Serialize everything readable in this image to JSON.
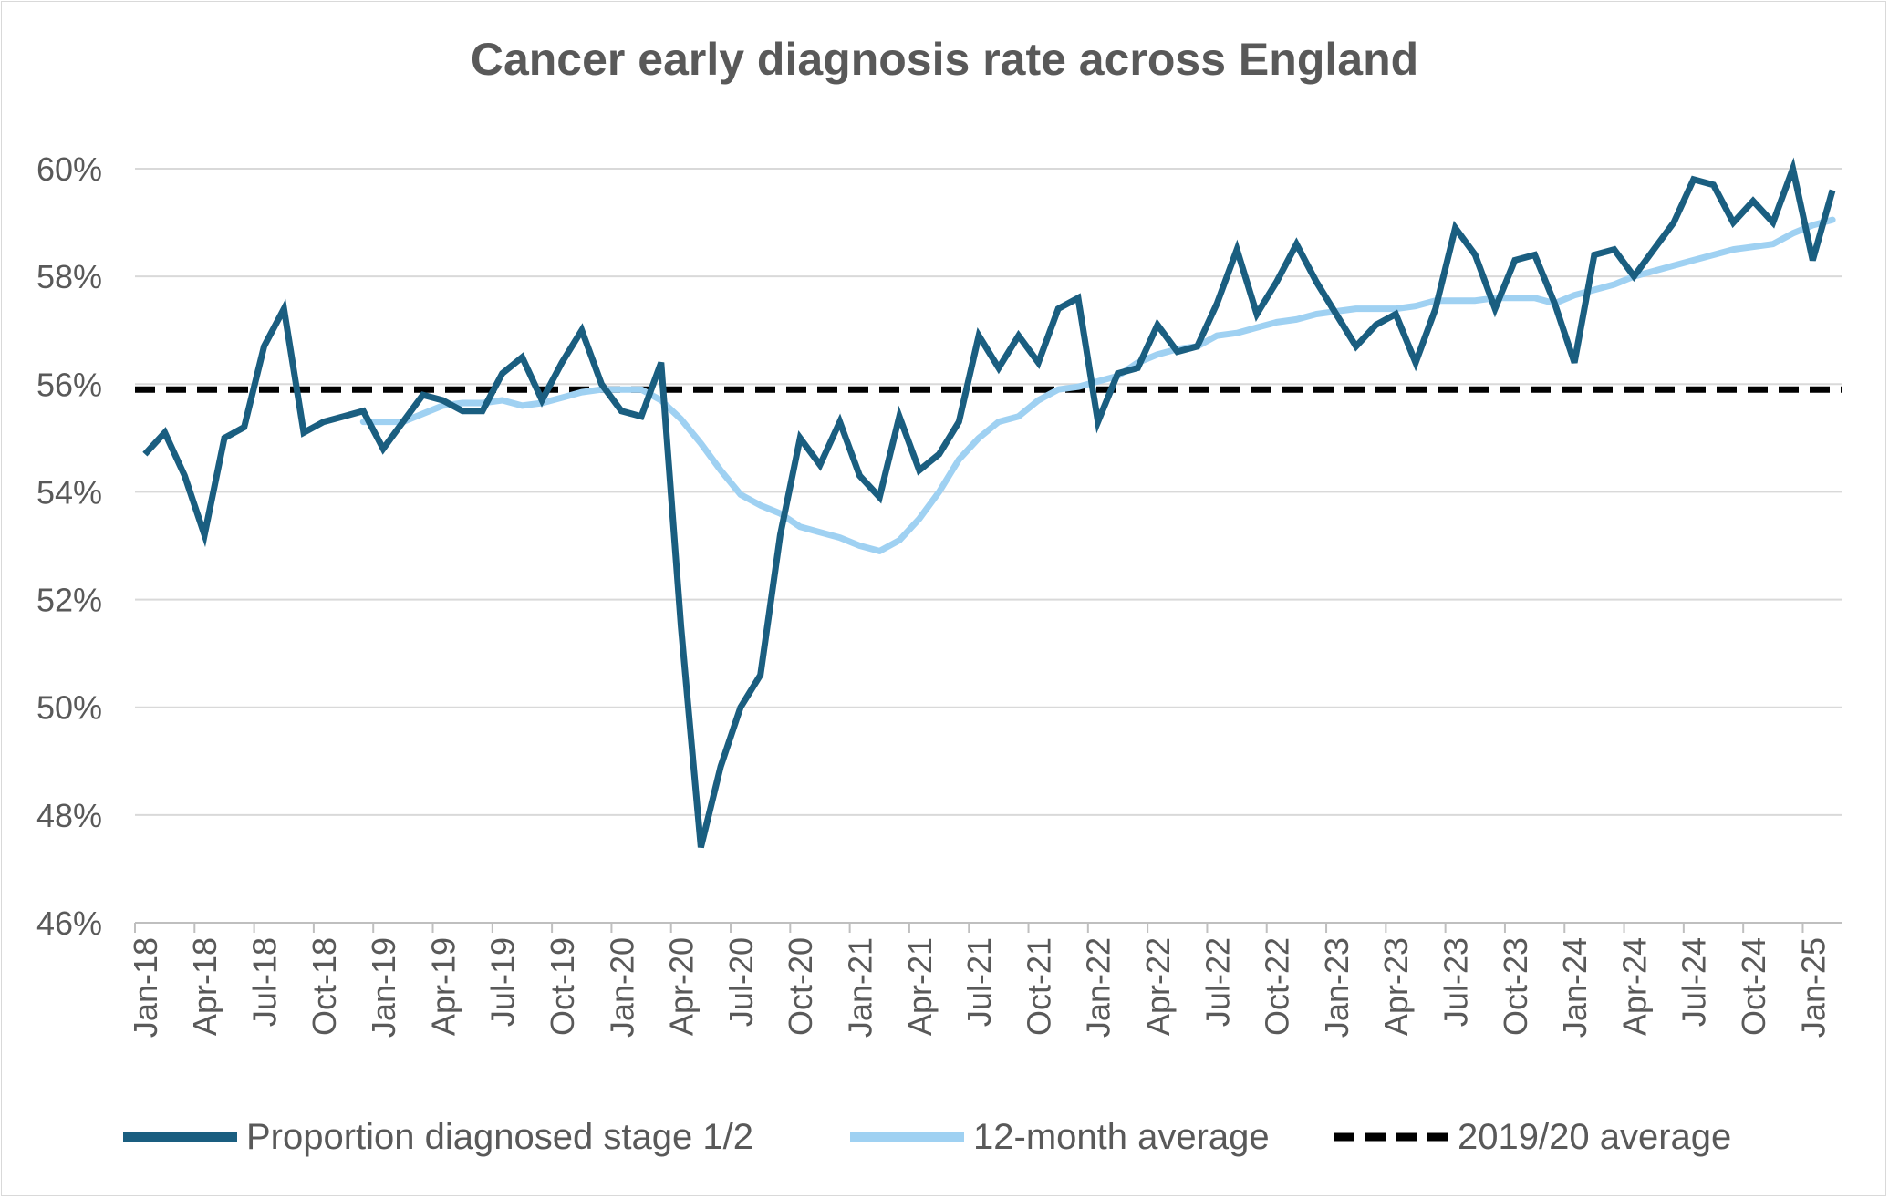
{
  "chart_data": {
    "type": "line",
    "title": "Cancer early diagnosis rate across England",
    "xlabel": "",
    "ylabel": "",
    "ylim": [
      46,
      60
    ],
    "y_ticks": [
      "46%",
      "48%",
      "50%",
      "52%",
      "54%",
      "56%",
      "58%",
      "60%"
    ],
    "x_tick_labels": [
      "Jan-18",
      "Apr-18",
      "Jul-18",
      "Oct-18",
      "Jan-19",
      "Apr-19",
      "Jul-19",
      "Oct-19",
      "Jan-20",
      "Apr-20",
      "Jul-20",
      "Oct-20",
      "Jan-21",
      "Apr-21",
      "Jul-21",
      "Oct-21",
      "Jan-22",
      "Apr-22",
      "Jul-22",
      "Oct-22",
      "Jan-23",
      "Apr-23",
      "Jul-23",
      "Oct-23",
      "Jan-24",
      "Apr-24",
      "Jul-24",
      "Oct-24",
      "Jan-25"
    ],
    "months": 86,
    "legend_position": "bottom",
    "series": [
      {
        "name": "Proportion diagnosed stage 1/2",
        "color": "#1a5e80",
        "style": "solid",
        "start_index": 0,
        "values": [
          54.7,
          55.1,
          54.3,
          53.2,
          55.0,
          55.2,
          56.7,
          57.4,
          55.1,
          55.3,
          55.4,
          55.5,
          54.8,
          55.3,
          55.8,
          55.7,
          55.5,
          55.5,
          56.2,
          56.5,
          55.7,
          56.4,
          57.0,
          56.0,
          55.5,
          55.4,
          56.4,
          51.5,
          47.4,
          48.9,
          50.0,
          50.6,
          53.2,
          55.0,
          54.5,
          55.3,
          54.3,
          53.9,
          55.4,
          54.4,
          54.7,
          55.3,
          56.9,
          56.3,
          56.9,
          56.4,
          57.4,
          57.6,
          55.3,
          56.2,
          56.3,
          57.1,
          56.6,
          56.7,
          57.5,
          58.5,
          57.3,
          57.9,
          58.6,
          57.9,
          57.3,
          56.7,
          57.1,
          57.3,
          56.4,
          57.4,
          58.9,
          58.4,
          57.4,
          58.3,
          58.4,
          57.5,
          56.4,
          58.4,
          58.5,
          58.0,
          58.5,
          59.0,
          59.8,
          59.7,
          59.0,
          59.4,
          59.0,
          60.0,
          58.3,
          59.6
        ]
      },
      {
        "name": "12-month average",
        "color": "#9fd1f2",
        "style": "solid",
        "start_index": 11,
        "values": [
          55.3,
          55.3,
          55.3,
          55.45,
          55.6,
          55.65,
          55.65,
          55.7,
          55.6,
          55.65,
          55.75,
          55.85,
          55.9,
          55.9,
          55.9,
          55.7,
          55.35,
          54.9,
          54.4,
          53.95,
          53.75,
          53.6,
          53.35,
          53.25,
          53.15,
          53.0,
          52.9,
          53.1,
          53.5,
          54.0,
          54.6,
          55.0,
          55.3,
          55.4,
          55.7,
          55.9,
          55.95,
          56.05,
          56.15,
          56.4,
          56.55,
          56.65,
          56.7,
          56.9,
          56.95,
          57.05,
          57.15,
          57.2,
          57.3,
          57.35,
          57.4,
          57.4,
          57.4,
          57.45,
          57.55,
          57.55,
          57.55,
          57.6,
          57.6,
          57.6,
          57.5,
          57.65,
          57.75,
          57.85,
          58.0,
          58.1,
          58.2,
          58.3,
          58.4,
          58.5,
          58.55,
          58.6,
          58.8,
          58.95,
          59.05
        ]
      },
      {
        "name": "2019/20 average",
        "color": "#000000",
        "style": "dashed",
        "value": 55.9
      }
    ]
  }
}
